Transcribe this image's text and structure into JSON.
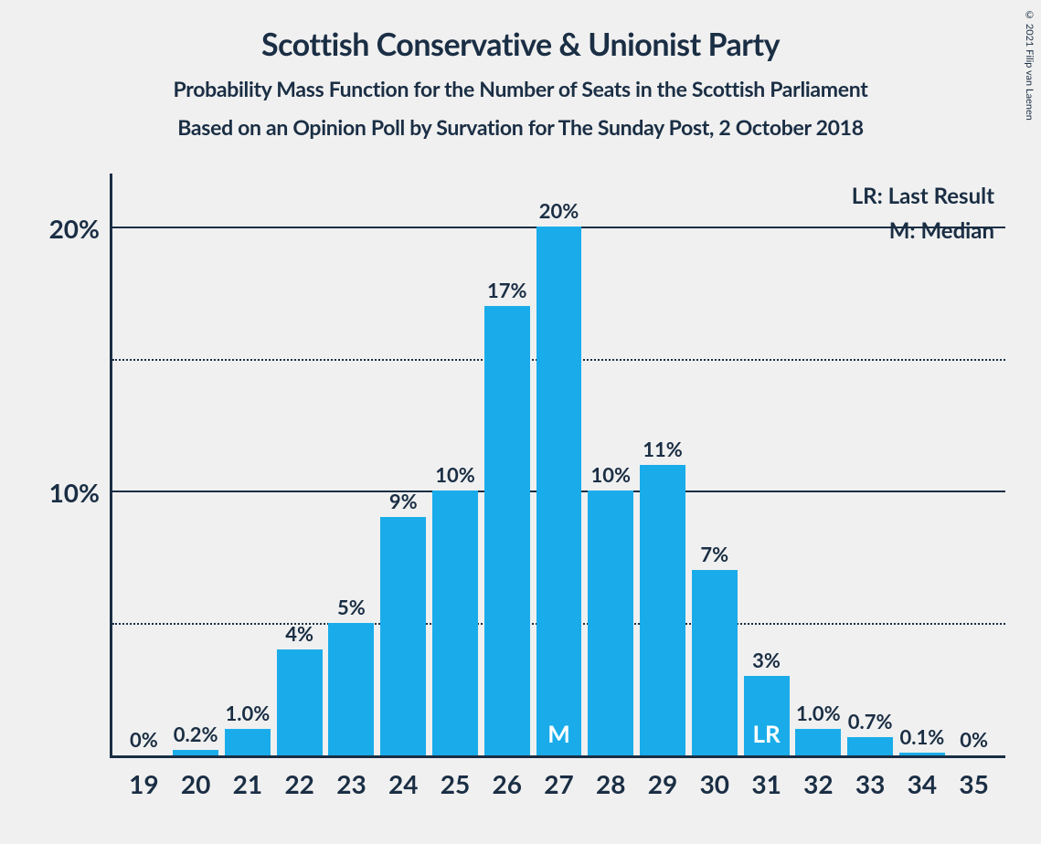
{
  "title": "Scottish Conservative & Unionist Party",
  "subtitle1": "Probability Mass Function for the Number of Seats in the Scottish Parliament",
  "subtitle2": "Based on an Opinion Poll by Survation for The Sunday Post, 2 October 2018",
  "copyright": "© 2021 Filip van Laenen",
  "legend": {
    "lr": "LR: Last Result",
    "m": "M: Median"
  },
  "chart": {
    "type": "bar",
    "bar_color": "#1aacea",
    "text_color": "#1a2e44",
    "background_color": "#f0f0f0",
    "title_fontsize": 34,
    "subtitle_fontsize": 23,
    "axis_fontsize": 28,
    "bar_label_fontsize": 22,
    "bar_width_pct": 88,
    "ylim": [
      0,
      22
    ],
    "y_ticks": [
      {
        "value": 20,
        "label": "20%",
        "style": "solid"
      },
      {
        "value": 15,
        "label": "",
        "style": "dotted"
      },
      {
        "value": 10,
        "label": "10%",
        "style": "solid"
      },
      {
        "value": 5,
        "label": "",
        "style": "dotted"
      }
    ],
    "categories": [
      "19",
      "20",
      "21",
      "22",
      "23",
      "24",
      "25",
      "26",
      "27",
      "28",
      "29",
      "30",
      "31",
      "32",
      "33",
      "34",
      "35"
    ],
    "values": [
      0,
      0.2,
      1.0,
      4,
      5,
      9,
      10,
      17,
      20,
      10,
      11,
      7,
      3,
      1.0,
      0.7,
      0.1,
      0
    ],
    "value_labels": [
      "0%",
      "0.2%",
      "1.0%",
      "4%",
      "5%",
      "9%",
      "10%",
      "17%",
      "20%",
      "10%",
      "11%",
      "7%",
      "3%",
      "1.0%",
      "0.7%",
      "0.1%",
      "0%"
    ],
    "inner_labels": {
      "27": "M",
      "31": "LR"
    }
  }
}
